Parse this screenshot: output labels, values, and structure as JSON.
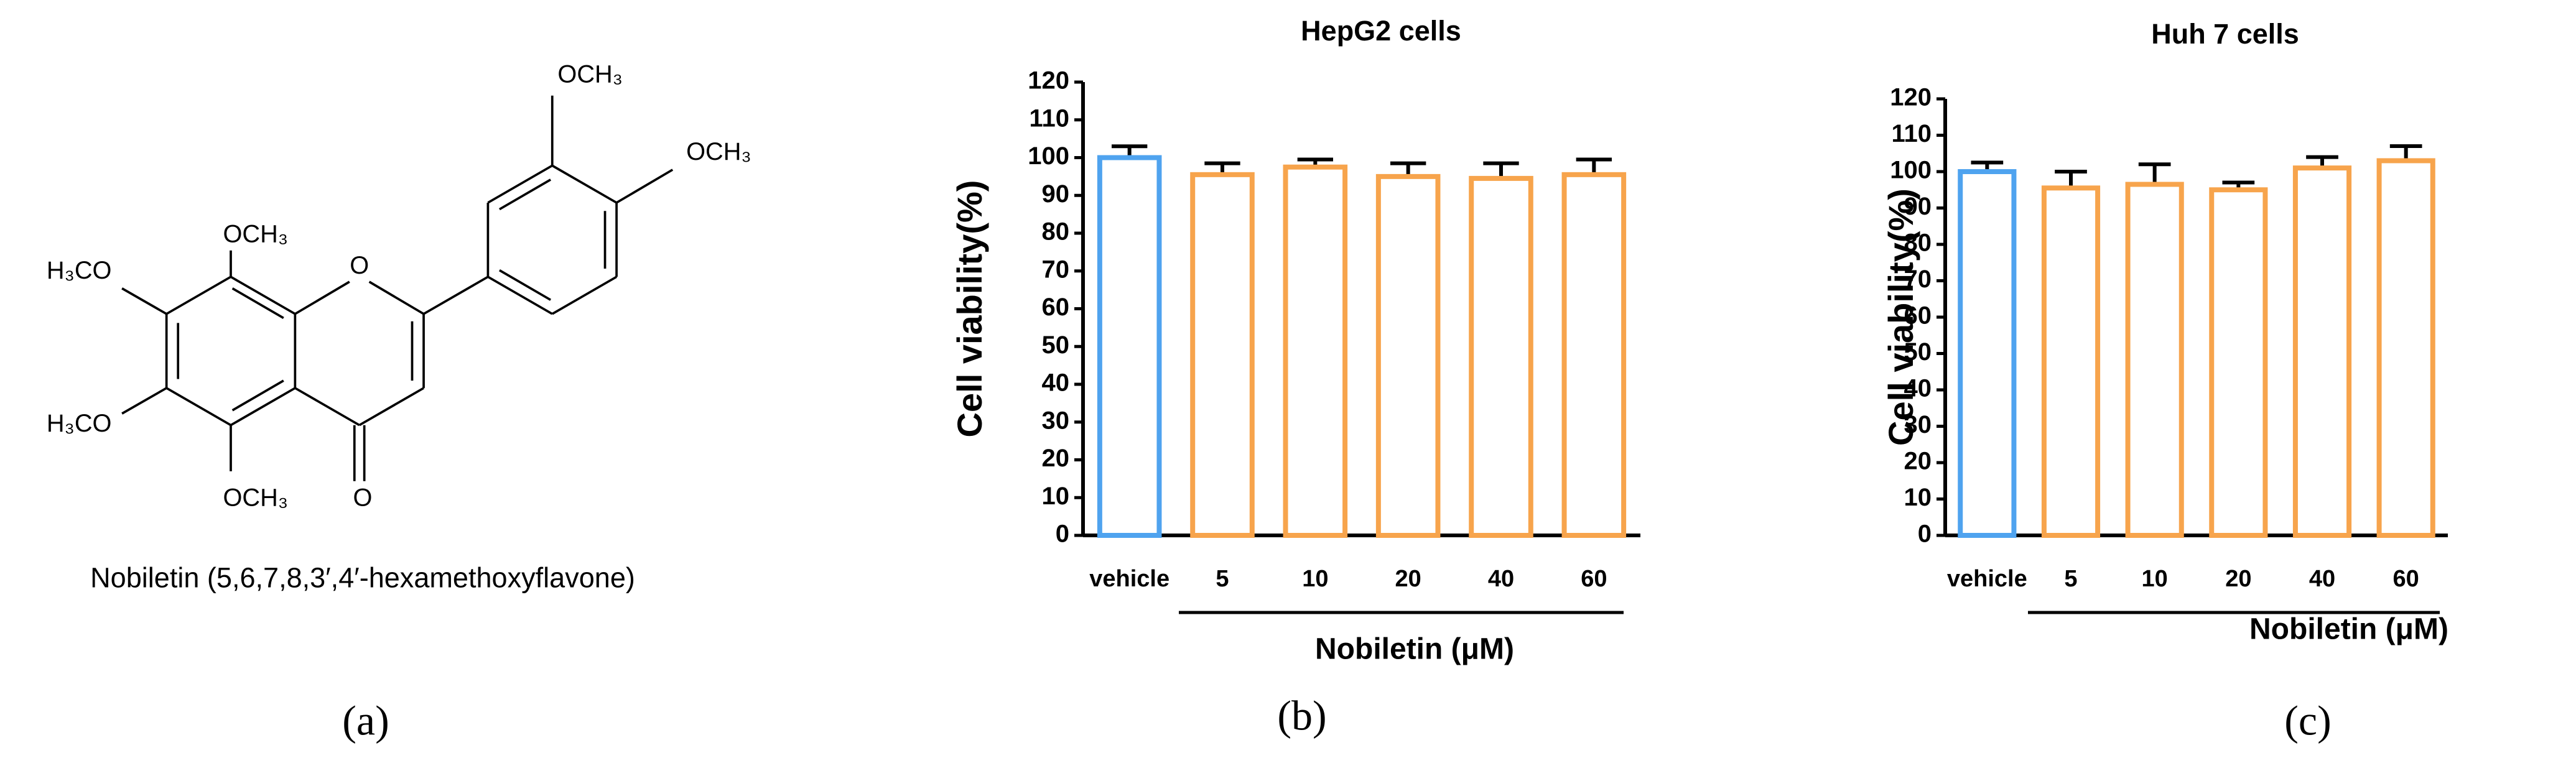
{
  "structure": {
    "labels": [
      "OCH₃",
      "OCH₃",
      "H₃CO",
      "OCH₃",
      "H₃CO",
      "OCH₃",
      "O",
      "O"
    ],
    "caption": "Nobiletin (5,6,7,8,3′,4′-hexamethoxyflavone)"
  },
  "panel_labels": [
    "(a)",
    "(b)",
    "(c)"
  ],
  "chart_data": [
    {
      "type": "bar",
      "title": "HepG2 cells",
      "ylabel": "Cell viability(%)",
      "xlabel": "Nobiletin (μM)",
      "categories": [
        "vehicle",
        "5",
        "10",
        "20",
        "40",
        "60"
      ],
      "values": [
        100,
        95.5,
        97.5,
        95,
        94.5,
        95.5
      ],
      "errors": [
        3,
        3,
        2,
        3.5,
        4,
        4
      ],
      "colors": [
        "#4fa3ef",
        "#f7a44c",
        "#f7a44c",
        "#f7a44c",
        "#f7a44c",
        "#f7a44c"
      ],
      "ylim": [
        0,
        120
      ],
      "yticks": [
        0,
        10,
        20,
        30,
        40,
        50,
        60,
        70,
        80,
        90,
        100,
        110,
        120
      ]
    },
    {
      "type": "bar",
      "title": "Huh 7 cells",
      "ylabel": "Cell viability(%)",
      "xlabel": "Nobiletin (μM)",
      "categories": [
        "vehicle",
        "5",
        "10",
        "20",
        "40",
        "60"
      ],
      "values": [
        100,
        95.5,
        96.5,
        95,
        101,
        103
      ],
      "errors": [
        2.5,
        4.5,
        5.5,
        2,
        3,
        4
      ],
      "colors": [
        "#4fa3ef",
        "#f7a44c",
        "#f7a44c",
        "#f7a44c",
        "#f7a44c",
        "#f7a44c"
      ],
      "ylim": [
        0,
        120
      ],
      "yticks": [
        0,
        10,
        20,
        30,
        40,
        50,
        60,
        70,
        80,
        90,
        100,
        110,
        120
      ]
    }
  ]
}
